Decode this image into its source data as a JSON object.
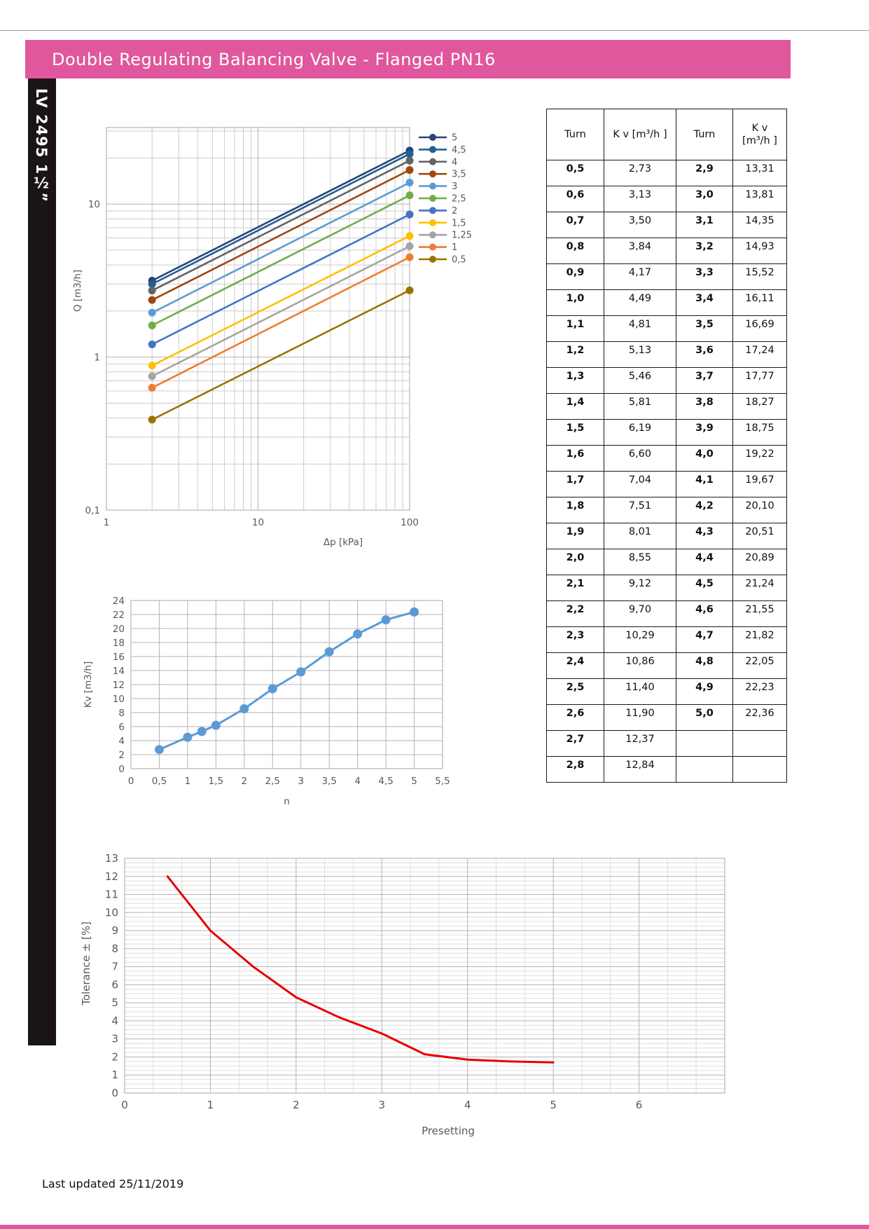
{
  "header": {
    "title": "Double Regulating Balancing Valve - Flanged PN16",
    "bg_color": "#E0579D"
  },
  "sidebar": {
    "label": "LV 2495 1½”",
    "bg_color": "#1b1416"
  },
  "footer": {
    "text": "Last updated 25/11/2019"
  },
  "kv_table": {
    "headers": [
      "Turn",
      "K v [m³/h ]",
      "Turn",
      "K v [m³/h ]"
    ],
    "rows": [
      [
        "0,5",
        "2,73",
        "2,9",
        "13,31"
      ],
      [
        "0,6",
        "3,13",
        "3,0",
        "13,81"
      ],
      [
        "0,7",
        "3,50",
        "3,1",
        "14,35"
      ],
      [
        "0,8",
        "3,84",
        "3,2",
        "14,93"
      ],
      [
        "0,9",
        "4,17",
        "3,3",
        "15,52"
      ],
      [
        "1,0",
        "4,49",
        "3,4",
        "16,11"
      ],
      [
        "1,1",
        "4,81",
        "3,5",
        "16,69"
      ],
      [
        "1,2",
        "5,13",
        "3,6",
        "17,24"
      ],
      [
        "1,3",
        "5,46",
        "3,7",
        "17,77"
      ],
      [
        "1,4",
        "5,81",
        "3,8",
        "18,27"
      ],
      [
        "1,5",
        "6,19",
        "3,9",
        "18,75"
      ],
      [
        "1,6",
        "6,60",
        "4,0",
        "19,22"
      ],
      [
        "1,7",
        "7,04",
        "4,1",
        "19,67"
      ],
      [
        "1,8",
        "7,51",
        "4,2",
        "20,10"
      ],
      [
        "1,9",
        "8,01",
        "4,3",
        "20,51"
      ],
      [
        "2,0",
        "8,55",
        "4,4",
        "20,89"
      ],
      [
        "2,1",
        "9,12",
        "4,5",
        "21,24"
      ],
      [
        "2,2",
        "9,70",
        "4,6",
        "21,55"
      ],
      [
        "2,3",
        "10,29",
        "4,7",
        "21,82"
      ],
      [
        "2,4",
        "10,86",
        "4,8",
        "22,05"
      ],
      [
        "2,5",
        "11,40",
        "4,9",
        "22,23"
      ],
      [
        "2,6",
        "11,90",
        "5,0",
        "22,36"
      ],
      [
        "2,7",
        "12,37",
        "",
        ""
      ],
      [
        "2,8",
        "12,84",
        "",
        ""
      ]
    ]
  },
  "chart_data": [
    {
      "id": "flow",
      "type": "line",
      "title": "",
      "xlabel": "Δp  [kPa]",
      "ylabel": "Q  [m3/h]",
      "x_scale": "log",
      "y_scale": "log",
      "xlim": [
        1,
        100
      ],
      "ylim": [
        0.1,
        31.62
      ],
      "grid": true,
      "legend_position": "right",
      "x_ticks": [
        {
          "v": 1,
          "label": "1"
        },
        {
          "v": 10,
          "label": "10"
        },
        {
          "v": 100,
          "label": "100"
        }
      ],
      "y_ticks": [
        {
          "v": 0.1,
          "label": "0,1"
        },
        {
          "v": 1,
          "label": "1"
        },
        {
          "v": 10,
          "label": "10"
        }
      ],
      "markers": true,
      "series": [
        {
          "name": "5",
          "color": "#264478",
          "x": [
            2,
            100
          ],
          "y": [
            3.16,
            22.36
          ]
        },
        {
          "name": "4,5",
          "color": "#255E91",
          "x": [
            2,
            100
          ],
          "y": [
            3.0,
            21.24
          ]
        },
        {
          "name": "4",
          "color": "#636363",
          "x": [
            2,
            100
          ],
          "y": [
            2.72,
            19.22
          ]
        },
        {
          "name": "3,5",
          "color": "#9E480E",
          "x": [
            2,
            100
          ],
          "y": [
            2.36,
            16.69
          ]
        },
        {
          "name": "3",
          "color": "#5B9BD5",
          "x": [
            2,
            100
          ],
          "y": [
            1.95,
            13.81
          ]
        },
        {
          "name": "2,5",
          "color": "#70AD47",
          "x": [
            2,
            100
          ],
          "y": [
            1.61,
            11.4
          ]
        },
        {
          "name": "2",
          "color": "#4472C4",
          "x": [
            2,
            100
          ],
          "y": [
            1.21,
            8.55
          ]
        },
        {
          "name": "1,5",
          "color": "#FFC000",
          "x": [
            2,
            100
          ],
          "y": [
            0.88,
            6.19
          ]
        },
        {
          "name": "1,25",
          "color": "#A5A5A5",
          "x": [
            2,
            100
          ],
          "y": [
            0.75,
            5.3
          ]
        },
        {
          "name": "1",
          "color": "#ED7D31",
          "x": [
            2,
            100
          ],
          "y": [
            0.63,
            4.49
          ]
        },
        {
          "name": "0,5",
          "color": "#997300",
          "x": [
            2,
            100
          ],
          "y": [
            0.39,
            2.73
          ]
        }
      ]
    },
    {
      "id": "kv",
      "type": "line",
      "title": "",
      "xlabel": "n",
      "ylabel": "Kv [m3/h]",
      "x_scale": "linear",
      "y_scale": "linear",
      "xlim": [
        0,
        5.5
      ],
      "ylim": [
        0,
        24
      ],
      "grid": true,
      "legend_position": "none",
      "x_ticks": [
        {
          "v": 0,
          "label": "0"
        },
        {
          "v": 0.5,
          "label": "0,5"
        },
        {
          "v": 1,
          "label": "1"
        },
        {
          "v": 1.5,
          "label": "1,5"
        },
        {
          "v": 2,
          "label": "2"
        },
        {
          "v": 2.5,
          "label": "2,5"
        },
        {
          "v": 3,
          "label": "3"
        },
        {
          "v": 3.5,
          "label": "3,5"
        },
        {
          "v": 4,
          "label": "4"
        },
        {
          "v": 4.5,
          "label": "4,5"
        },
        {
          "v": 5,
          "label": "5"
        },
        {
          "v": 5.5,
          "label": "5,5"
        }
      ],
      "y_ticks": [
        {
          "v": 0,
          "label": "0"
        },
        {
          "v": 2,
          "label": "2"
        },
        {
          "v": 4,
          "label": "4"
        },
        {
          "v": 6,
          "label": "6"
        },
        {
          "v": 8,
          "label": "8"
        },
        {
          "v": 10,
          "label": "10"
        },
        {
          "v": 12,
          "label": "12"
        },
        {
          "v": 14,
          "label": "14"
        },
        {
          "v": 16,
          "label": "16"
        },
        {
          "v": 18,
          "label": "18"
        },
        {
          "v": 20,
          "label": "20"
        },
        {
          "v": 22,
          "label": "22"
        },
        {
          "v": 24,
          "label": "24"
        }
      ],
      "markers": true,
      "series": [
        {
          "name": "Kv",
          "color": "#5B9BD5",
          "x": [
            0.5,
            1,
            1.25,
            1.5,
            2,
            2.5,
            3,
            3.5,
            4,
            4.5,
            5
          ],
          "y": [
            2.73,
            4.49,
            5.3,
            6.19,
            8.55,
            11.4,
            13.81,
            16.69,
            19.22,
            21.24,
            22.36
          ]
        }
      ]
    },
    {
      "id": "tol",
      "type": "line",
      "title": "",
      "xlabel": "Presetting",
      "ylabel": "Tolerance ± [%]",
      "x_scale": "linear",
      "y_scale": "linear",
      "xlim": [
        0,
        7
      ],
      "ylim": [
        0,
        13
      ],
      "grid": true,
      "x_minor_step": 0.3333,
      "y_minor_step": 0.25,
      "legend_position": "none",
      "x_ticks": [
        {
          "v": 0,
          "label": "0"
        },
        {
          "v": 1,
          "label": "1"
        },
        {
          "v": 2,
          "label": "2"
        },
        {
          "v": 3,
          "label": "3"
        },
        {
          "v": 4,
          "label": "4"
        },
        {
          "v": 5,
          "label": "5"
        },
        {
          "v": 6,
          "label": "6"
        }
      ],
      "y_ticks": [
        {
          "v": 0,
          "label": "0"
        },
        {
          "v": 1,
          "label": "1"
        },
        {
          "v": 2,
          "label": "2"
        },
        {
          "v": 3,
          "label": "3"
        },
        {
          "v": 4,
          "label": "4"
        },
        {
          "v": 5,
          "label": "5"
        },
        {
          "v": 6,
          "label": "6"
        },
        {
          "v": 7,
          "label": "7"
        },
        {
          "v": 8,
          "label": "8"
        },
        {
          "v": 9,
          "label": "9"
        },
        {
          "v": 10,
          "label": "10"
        },
        {
          "v": 11,
          "label": "11"
        },
        {
          "v": 12,
          "label": "12"
        },
        {
          "v": 13,
          "label": "13"
        }
      ],
      "markers": false,
      "series": [
        {
          "name": "Tolerance",
          "color": "#E60000",
          "x": [
            0.5,
            1,
            1.5,
            2,
            2.5,
            3,
            3.5,
            4,
            4.5,
            5
          ],
          "y": [
            12,
            9,
            7,
            5.3,
            4.2,
            3.3,
            2.15,
            1.85,
            1.75,
            1.7
          ]
        }
      ]
    }
  ]
}
